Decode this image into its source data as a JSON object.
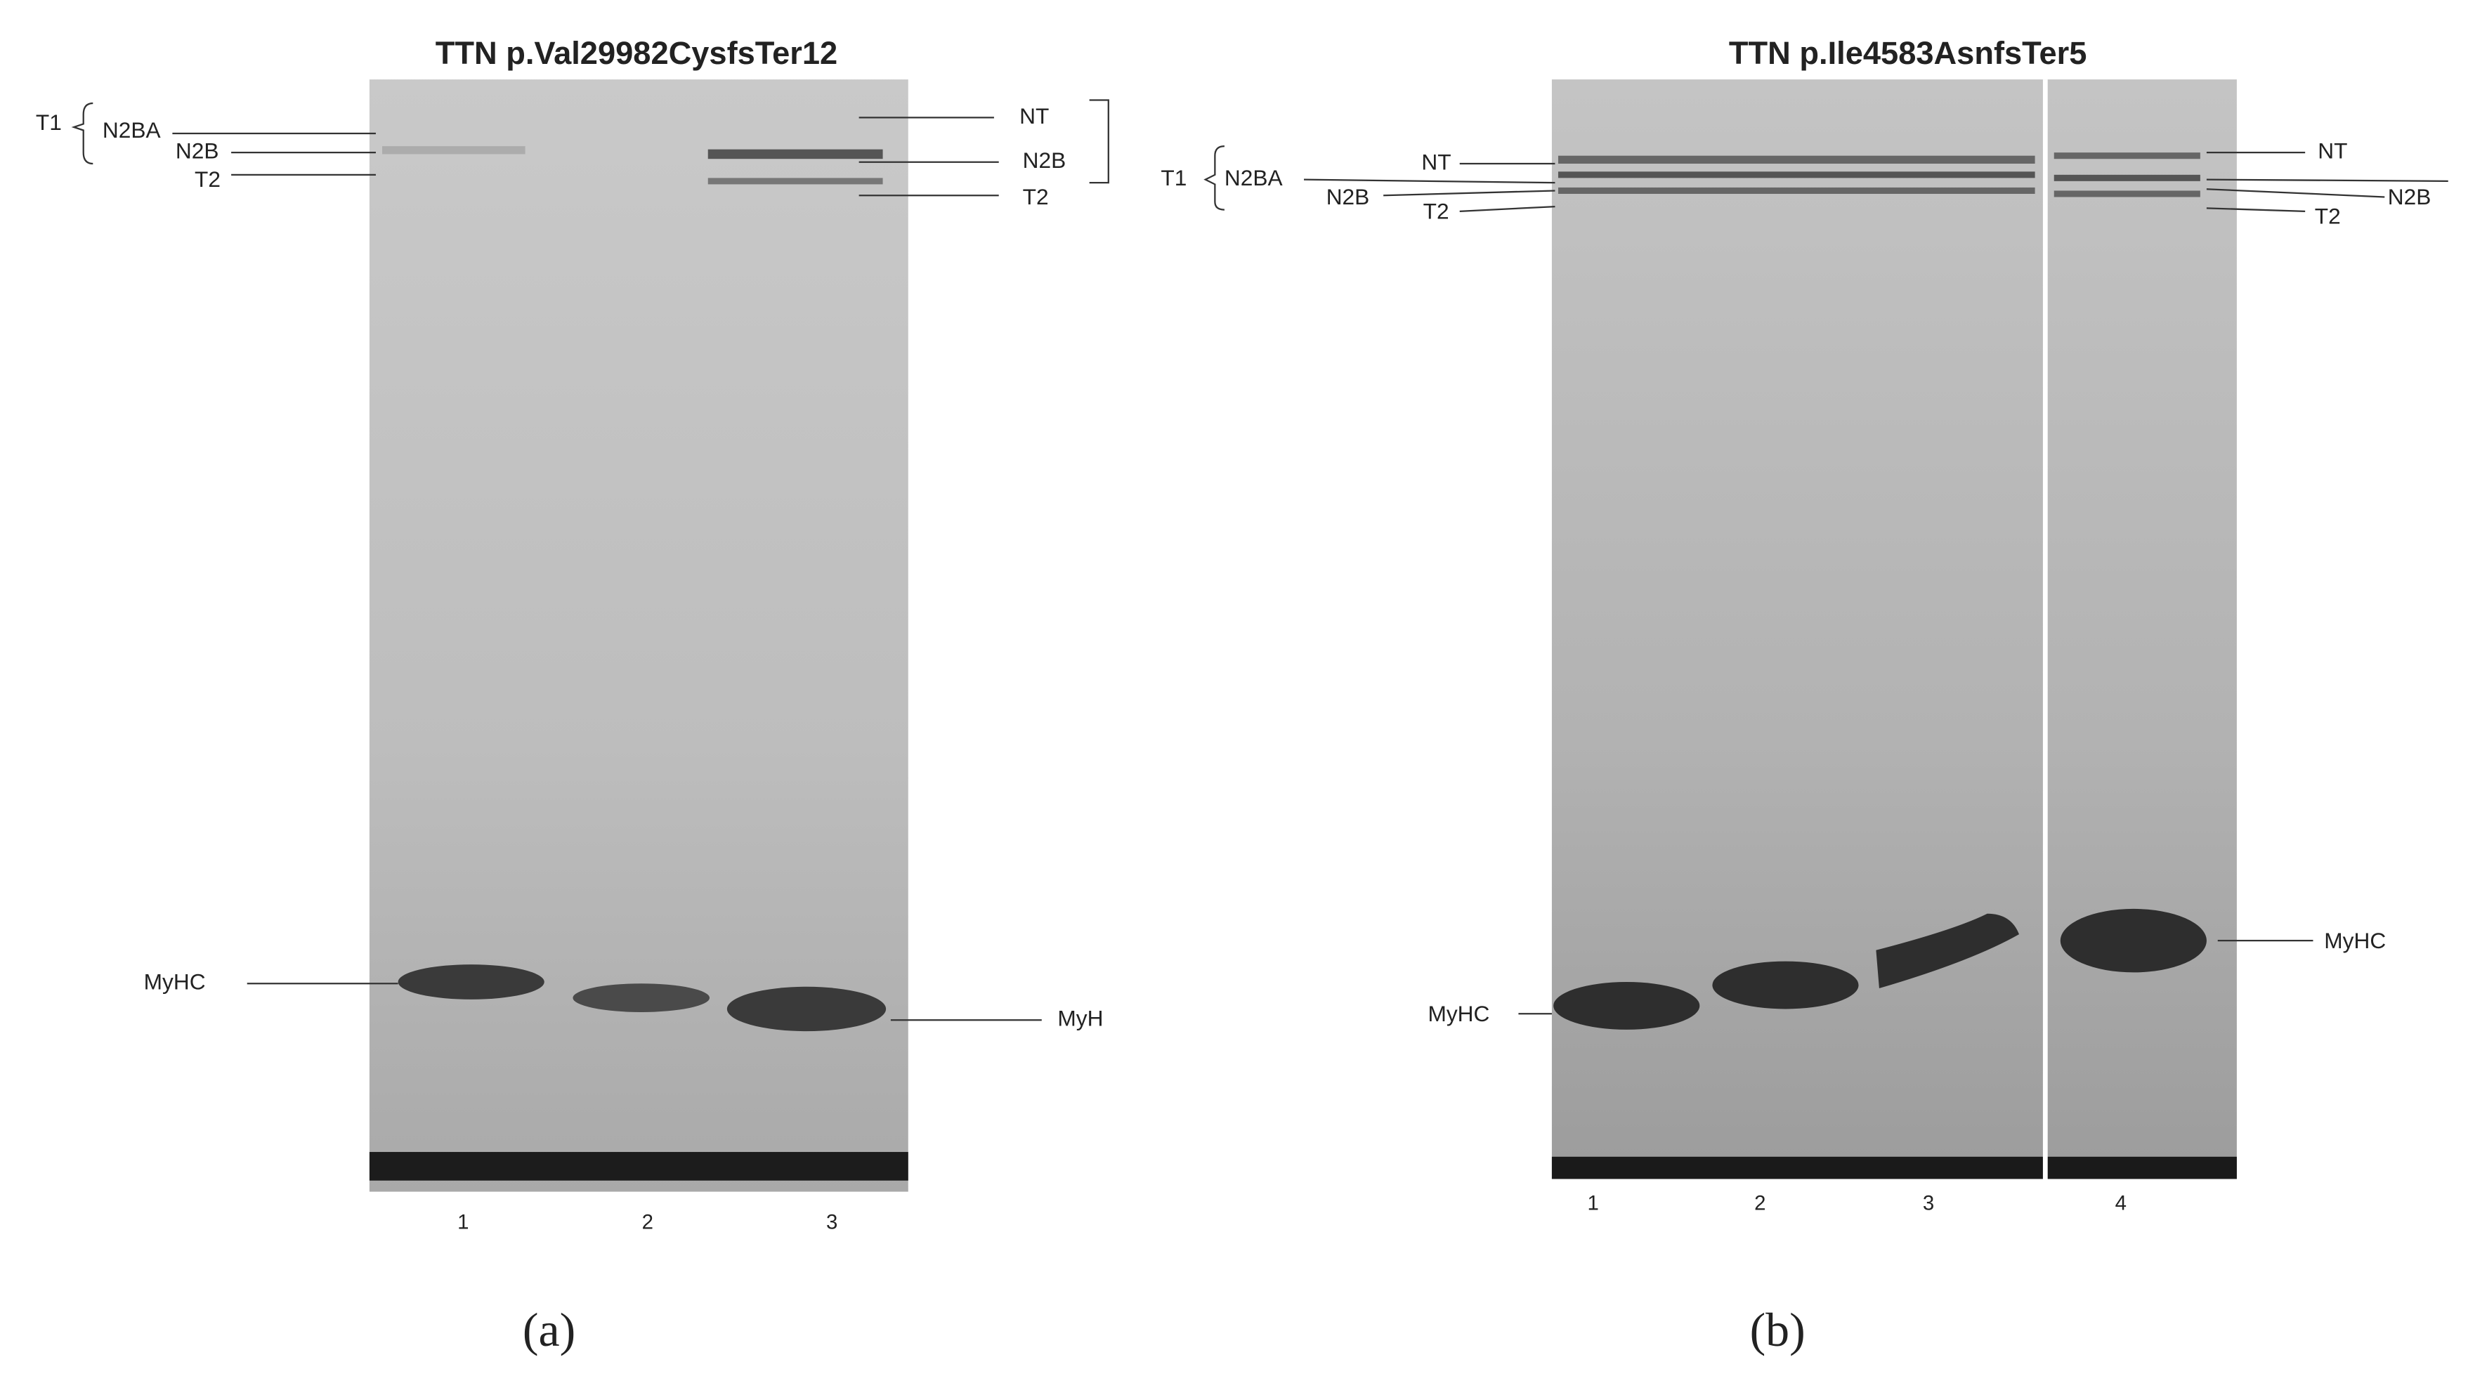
{
  "panels": [
    {
      "title": "TTN p.Val29982CysfsTer12",
      "label": "(a)",
      "left_labels": [
        "T1",
        "N2BA",
        "N2B",
        "T2",
        "MyHC"
      ],
      "right_labels": [
        "NT",
        "N2B",
        "T2",
        "MyH"
      ],
      "lanes": [
        "1",
        "2",
        "3"
      ]
    },
    {
      "title": "TTN p.Ile4583AsnfsTer5",
      "label": "(b)",
      "left_labels": [
        "T1",
        "N2BA",
        "NT",
        "N2B",
        "T2",
        "MyHC"
      ],
      "right_labels": [
        "NT",
        "N2B",
        "T2",
        "MyHC"
      ],
      "lanes": [
        "1",
        "2",
        "3",
        "4"
      ]
    }
  ]
}
